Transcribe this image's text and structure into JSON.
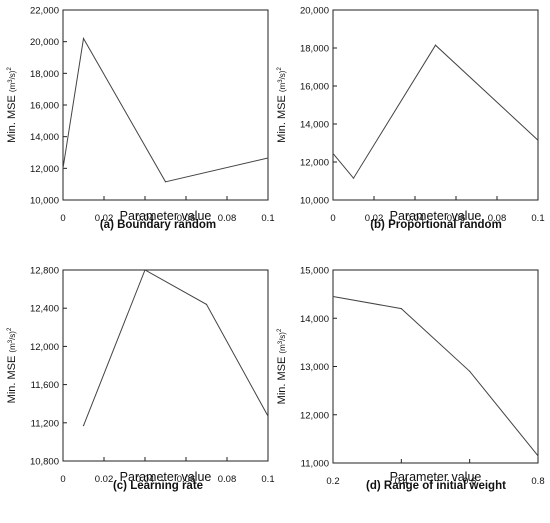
{
  "chart_data": [
    {
      "type": "line",
      "caption": "(a) Boundary random",
      "xlabel": "Parameter value",
      "ylabel": {
        "main": "Min. MSE ",
        "unit_base": "(m",
        "unit_sup": "3",
        "unit_mid": "/s)",
        "unit_sup2": "2"
      },
      "x": [
        0,
        0.01,
        0.05,
        0.1
      ],
      "y": [
        12000,
        20200,
        11150,
        12650
      ],
      "xlim": [
        0,
        0.1
      ],
      "ylim": [
        10000,
        22000
      ],
      "xticks": [
        0,
        0.02,
        0.04,
        0.06,
        0.08,
        0.1
      ],
      "xtick_labels": [
        "0",
        "0.02",
        "0.04",
        "0.06",
        "0.08",
        "0.1"
      ],
      "yticks": [
        10000,
        12000,
        14000,
        16000,
        18000,
        20000,
        22000
      ],
      "ytick_labels": [
        "10,000",
        "12,000",
        "14,000",
        "16,000",
        "18,000",
        "20,000",
        "22,000"
      ],
      "grid": false
    },
    {
      "type": "line",
      "caption": "(b) Proportional random",
      "xlabel": "Parameter value",
      "ylabel": {
        "main": "Min. MSE ",
        "unit_base": "(m",
        "unit_sup": "3",
        "unit_mid": "/s)",
        "unit_sup2": "2"
      },
      "x": [
        0,
        0.01,
        0.05,
        0.1
      ],
      "y": [
        12450,
        11150,
        18150,
        13150
      ],
      "xlim": [
        0,
        0.1
      ],
      "ylim": [
        10000,
        20000
      ],
      "xticks": [
        0,
        0.02,
        0.04,
        0.06,
        0.08,
        0.1
      ],
      "xtick_labels": [
        "0",
        "0.02",
        "0.04",
        "0.06",
        "0.08",
        "0.1"
      ],
      "yticks": [
        10000,
        12000,
        14000,
        16000,
        18000,
        20000
      ],
      "ytick_labels": [
        "10,000",
        "12,000",
        "14,000",
        "16,000",
        "18,000",
        "20,000"
      ],
      "grid": false
    },
    {
      "type": "line",
      "caption": "(c) Learning rate",
      "xlabel": "Parameter value",
      "ylabel": {
        "main": "Min. MSE ",
        "unit_base": "(m",
        "unit_sup": "3",
        "unit_mid": "/s)",
        "unit_sup2": "2"
      },
      "x": [
        0.01,
        0.04,
        0.07,
        0.1
      ],
      "y": [
        11170,
        12800,
        12440,
        11270
      ],
      "xlim": [
        0,
        0.1
      ],
      "ylim": [
        10800,
        12800
      ],
      "xticks": [
        0,
        0.02,
        0.04,
        0.06,
        0.08,
        0.1
      ],
      "xtick_labels": [
        "0",
        "0.02",
        "0.04",
        "0.06",
        "0.08",
        "0.1"
      ],
      "yticks": [
        10800,
        11200,
        11600,
        12000,
        12400,
        12800
      ],
      "ytick_labels": [
        "10,800",
        "11,200",
        "11,600",
        "12,000",
        "12,400",
        "12,800"
      ],
      "grid": false
    },
    {
      "type": "line",
      "caption": "(d) Range of initial weight",
      "xlabel": "Parameter value",
      "ylabel": {
        "main": "Min. MSE ",
        "unit_base": "(m",
        "unit_sup": "3",
        "unit_mid": "/s)",
        "unit_sup2": "2"
      },
      "x": [
        0.2,
        0.4,
        0.6,
        0.8
      ],
      "y": [
        14450,
        14200,
        12900,
        11150
      ],
      "xlim": [
        0.2,
        0.8
      ],
      "ylim": [
        11000,
        15000
      ],
      "xticks": [
        0.2,
        0.4,
        0.6,
        0.8
      ],
      "xtick_labels": [
        "0.2",
        "0.4",
        "0.6",
        "0.8"
      ],
      "yticks": [
        11000,
        12000,
        13000,
        14000,
        15000
      ],
      "ytick_labels": [
        "11,000",
        "12,000",
        "13,000",
        "14,000",
        "15,000"
      ],
      "grid": false
    }
  ]
}
